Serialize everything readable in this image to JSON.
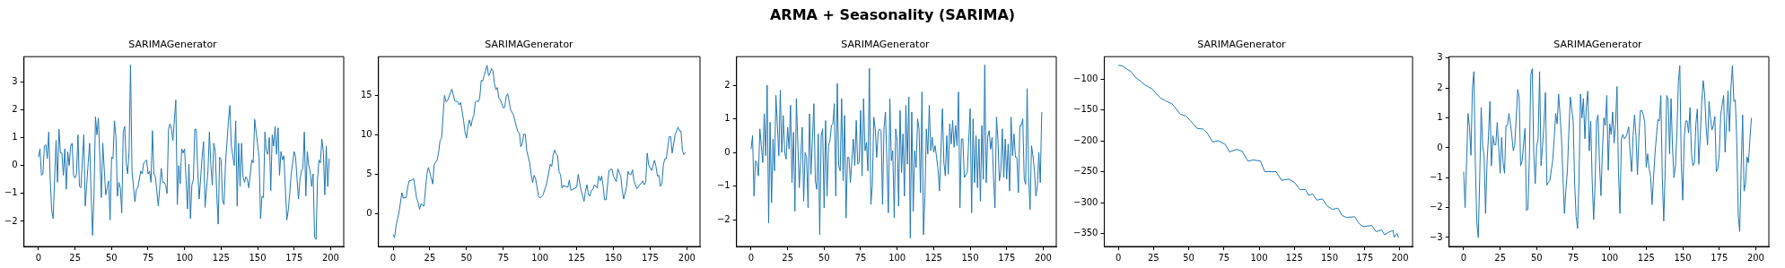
{
  "chart_data": [
    {
      "type": "line",
      "title": "SARIMAGenerator",
      "annotations": [
        "ARMA + Seasonality (SARIMA)"
      ],
      "xlim": [
        -9.95,
        208.95
      ],
      "xticks": [
        0,
        25,
        50,
        75,
        100,
        125,
        150,
        175,
        200
      ],
      "ylim": [
        -2.9,
        3.9
      ],
      "yticks": [
        -2,
        -1,
        0,
        1,
        2,
        3
      ],
      "x": [
        0,
        1,
        2,
        3,
        4,
        5,
        6,
        7,
        8,
        9,
        10,
        12,
        13,
        14,
        15,
        16,
        17,
        18,
        19,
        20,
        21,
        22,
        23,
        24,
        25,
        26,
        27,
        28,
        29,
        31,
        32,
        34,
        35,
        36,
        37,
        38,
        39,
        40,
        41,
        43,
        44,
        46,
        47,
        48,
        49,
        50,
        51,
        52,
        53,
        54,
        55,
        56,
        57,
        58,
        59,
        60,
        61,
        62,
        63,
        64,
        66,
        67,
        68,
        70,
        71,
        72,
        74,
        75,
        76,
        77,
        78,
        79,
        80,
        82,
        84,
        85,
        86,
        87,
        88,
        89,
        90,
        91,
        92,
        94,
        95,
        96,
        97,
        98,
        99,
        100,
        101,
        102,
        103,
        104,
        105,
        106,
        107,
        108,
        109,
        110,
        112,
        113,
        114,
        116,
        117,
        118,
        119,
        120,
        121,
        122,
        123,
        124,
        125,
        126,
        127,
        128,
        130,
        131,
        132,
        134,
        135,
        136,
        137,
        138,
        139,
        140,
        141,
        142,
        143,
        144,
        146,
        147,
        148,
        149,
        151,
        152,
        153,
        154,
        155,
        156,
        157,
        158,
        159,
        160,
        161,
        162,
        163,
        164,
        165,
        166,
        167,
        168,
        170,
        171,
        172,
        173,
        175,
        176,
        177,
        178,
        179,
        180,
        181,
        182,
        183,
        184,
        185,
        186,
        187,
        188,
        189,
        190,
        191,
        192,
        193,
        194,
        195,
        196,
        197,
        198,
        199
      ],
      "series": [
        {
          "color": "#1f77b4",
          "values": [
            0.3,
            0.6,
            -0.35,
            -0.3,
            0.7,
            0.75,
            0.25,
            1.2,
            -0.5,
            -1.6,
            -1.9,
            0.9,
            -0.6,
            1.3,
            0.45,
            0.45,
            -0.35,
            0.6,
            -0.85,
            0.5,
            0.0,
            0.7,
            0.8,
            -0.35,
            -0.45,
            -0.3,
            1.1,
            -0.75,
            -0.8,
            1.1,
            -1.45,
            0.1,
            0.8,
            -1.0,
            -2.5,
            -1.0,
            1.75,
            1.1,
            1.7,
            -1.15,
            0.8,
            -1.05,
            -0.8,
            -0.55,
            -1.95,
            0.3,
            0.25,
            1.6,
            1.0,
            -1.1,
            -0.6,
            -0.8,
            -1.7,
            1.2,
            1.4,
            0.1,
            -0.3,
            0.5,
            3.6,
            -0.2,
            -1.3,
            -0.85,
            -0.8,
            -0.2,
            -0.3,
            0.1,
            0.2,
            -0.3,
            -0.2,
            -0.6,
            1.25,
            -0.3,
            -0.4,
            -1.45,
            -0.1,
            -0.6,
            -0.6,
            -0.7,
            -1.0,
            1.3,
            1.5,
            1.3,
            0.9,
            2.35,
            -1.4,
            0.0,
            -0.65,
            0.6,
            0.45,
            0.6,
            -0.5,
            -1.55,
            0.05,
            -1.9,
            -0.7,
            -0.5,
            1.3,
            1.3,
            -0.2,
            -1.2,
            0.3,
            0.85,
            -1.5,
            -0.2,
            1.2,
            0.0,
            -0.7,
            0.8,
            0.5,
            -1.0,
            -2.1,
            0.3,
            0.2,
            -1.25,
            -1.4,
            0.05,
            1.6,
            2.15,
            0.7,
            0.0,
            1.6,
            -1.45,
            0.8,
            -0.75,
            0.8,
            -0.4,
            -0.6,
            -0.4,
            -0.5,
            -0.8,
            0.2,
            0.1,
            1.65,
            1.2,
            0.3,
            -1.9,
            -1.1,
            -1.15,
            1.2,
            0.5,
            0.4,
            1.0,
            -0.9,
            1.1,
            0.7,
            1.4,
            0.4,
            1.35,
            -0.35,
            0.5,
            0.2,
            0.35,
            -1.95,
            -1.6,
            -1.0,
            -0.3,
            0.5,
            0.3,
            -0.5,
            -1.2,
            -0.5,
            -0.2,
            -0.1,
            1.2,
            -1.1,
            0.5,
            0.0,
            -0.2,
            -0.75,
            -0.3,
            -2.55,
            -2.65,
            -0.5,
            0.2,
            0.1,
            0.95,
            0.5,
            -1.05,
            0.7,
            -0.75,
            0.25
          ]
        }
      ]
    },
    {
      "type": "line",
      "title": "SARIMAGenerator",
      "xlim": [
        -9.95,
        208.95
      ],
      "xticks": [
        0,
        25,
        50,
        75,
        100,
        125,
        150,
        175,
        200
      ],
      "ylim": [
        -4.1,
        19.9
      ],
      "yticks": [
        0,
        5,
        10,
        15
      ],
      "x": [
        0,
        1,
        2,
        4,
        6,
        7,
        9,
        10,
        11,
        13,
        14,
        16,
        17,
        18,
        19,
        21,
        23,
        24,
        25,
        27,
        28,
        30,
        31,
        32,
        33,
        35,
        36,
        37,
        39,
        40,
        42,
        44,
        45,
        46,
        47,
        48,
        49,
        50,
        51,
        52,
        53,
        54,
        55,
        56,
        57,
        58,
        59,
        60,
        61,
        62,
        64,
        65,
        66,
        67,
        68,
        69,
        70,
        71,
        72,
        73,
        75,
        76,
        77,
        78,
        80,
        82,
        84,
        85,
        86,
        87,
        88,
        89,
        90,
        91,
        93,
        94,
        95,
        96,
        97,
        99,
        100,
        102,
        104,
        105,
        107,
        108,
        109,
        110,
        111,
        112,
        113,
        114,
        115,
        116,
        119,
        120,
        121,
        123,
        125,
        126,
        128,
        130,
        131,
        132,
        133,
        134,
        135,
        136,
        137,
        139,
        140,
        141,
        142,
        143,
        144,
        145,
        147,
        149,
        150,
        152,
        153,
        155,
        156,
        157,
        159,
        160,
        161,
        162,
        163,
        164,
        166,
        168,
        170,
        171,
        172,
        173,
        174,
        176,
        178,
        179,
        180,
        181,
        182,
        183,
        184,
        185,
        186,
        188,
        189,
        190,
        192,
        194,
        195,
        196,
        197,
        198,
        199
      ],
      "series": [
        {
          "color": "#1f77b4",
          "values": [
            -2.6,
            -3.0,
            -1.5,
            0.2,
            2.7,
            2.0,
            2.1,
            3.5,
            4.2,
            4.3,
            4.5,
            2.0,
            1.5,
            0.6,
            1.3,
            1.0,
            5.0,
            5.9,
            5.3,
            3.8,
            6.3,
            6.8,
            7.8,
            9.3,
            9.6,
            15.0,
            14.2,
            14.3,
            15.3,
            15.8,
            14.3,
            14.2,
            13.8,
            14.1,
            13.0,
            11.8,
            10.3,
            9.6,
            11.2,
            11.9,
            11.1,
            12.0,
            12.5,
            14.2,
            14.3,
            14.2,
            14.7,
            16.9,
            16.8,
            17.5,
            18.8,
            17.5,
            17.8,
            18.4,
            18.1,
            16.5,
            15.7,
            16.0,
            14.6,
            14.5,
            13.4,
            13.5,
            14.9,
            15.2,
            13.2,
            12.5,
            11.0,
            10.4,
            10.2,
            8.5,
            9.0,
            10.1,
            10.1,
            8.0,
            6.5,
            5.0,
            4.0,
            4.9,
            4.5,
            2.3,
            2.0,
            2.4,
            3.5,
            4.3,
            6.3,
            6.0,
            7.5,
            8.1,
            7.6,
            7.4,
            5.3,
            5.0,
            3.3,
            3.6,
            3.4,
            4.3,
            3.0,
            3.2,
            3.4,
            5.0,
            3.0,
            1.6,
            2.9,
            3.7,
            2.4,
            2.3,
            3.0,
            3.1,
            3.7,
            3.3,
            4.8,
            4.2,
            4.8,
            3.5,
            1.8,
            1.8,
            5.5,
            5.7,
            4.8,
            4.1,
            5.7,
            4.8,
            3.0,
            1.9,
            3.5,
            5.4,
            5.0,
            5.0,
            5.6,
            4.2,
            3.2,
            3.7,
            4.2,
            3.7,
            4.0,
            7.7,
            6.2,
            5.5,
            6.8,
            6.0,
            4.8,
            4.9,
            3.5,
            3.8,
            6.2,
            7.0,
            7.0,
            9.8,
            9.8,
            7.7,
            10.0,
            11.0,
            10.5,
            10.5,
            8.0,
            7.5,
            7.8
          ]
        }
      ]
    },
    {
      "type": "line",
      "title": "SARIMAGenerator",
      "xlim": [
        -9.95,
        208.95
      ],
      "xticks": [
        0,
        25,
        50,
        75,
        100,
        125,
        150,
        175,
        200
      ],
      "ylim": [
        -2.8,
        2.85
      ],
      "yticks": [
        -2,
        -1,
        0,
        1,
        2
      ],
      "x": [
        0,
        1,
        2,
        3,
        4,
        5,
        6,
        7,
        8,
        9,
        10,
        11,
        12,
        13,
        14,
        15,
        16,
        17,
        19,
        20,
        21,
        22,
        23,
        24,
        25,
        26,
        27,
        28,
        29,
        30,
        31,
        33,
        35,
        36,
        37,
        38,
        39,
        40,
        41,
        43,
        44,
        45,
        46,
        47,
        48,
        49,
        50,
        51,
        52,
        53,
        54,
        55,
        56,
        57,
        58,
        59,
        60,
        61,
        62,
        63,
        64,
        65,
        66,
        67,
        68,
        70,
        71,
        72,
        73,
        74,
        75,
        76,
        77,
        78,
        79,
        80,
        81,
        82,
        83,
        84,
        85,
        86,
        87,
        88,
        89,
        90,
        91,
        92,
        94,
        95,
        96,
        97,
        98,
        99,
        100,
        101,
        102,
        103,
        104,
        105,
        106,
        107,
        108,
        109,
        110,
        111,
        112,
        113,
        114,
        115,
        116,
        117,
        118,
        119,
        120,
        121,
        122,
        123,
        124,
        125,
        126,
        128,
        129,
        131,
        132,
        133,
        134,
        135,
        136,
        137,
        138,
        139,
        140,
        141,
        142,
        143,
        144,
        145,
        146,
        148,
        150,
        151,
        152,
        153,
        154,
        155,
        156,
        157,
        158,
        159,
        160,
        161,
        162,
        163,
        164,
        165,
        166,
        167,
        168,
        169,
        170,
        171,
        172,
        173,
        174,
        175,
        176,
        177,
        178,
        179,
        180,
        181,
        182,
        183,
        184,
        185,
        186,
        187,
        188,
        189,
        190,
        191,
        192,
        193,
        194,
        195,
        196,
        197,
        198,
        199
      ],
      "series": [
        {
          "color": "#1f77b4",
          "values": [
            0.1,
            0.5,
            -1.3,
            -0.25,
            -0.3,
            -0.7,
            0.7,
            0.2,
            -0.3,
            1.15,
            -0.1,
            2.0,
            -2.1,
            0.9,
            -1.5,
            0.4,
            -0.55,
            1.7,
            -0.1,
            1.85,
            0.0,
            1.1,
            0.0,
            -0.2,
            0.75,
            0.1,
            1.4,
            -0.9,
            0.6,
            -1.75,
            1.6,
            -1.05,
            0.75,
            -1.45,
            0.0,
            -0.15,
            -1.65,
            1.15,
            -0.65,
            1.45,
            -0.85,
            -1.1,
            0.55,
            -2.45,
            0.5,
            0.7,
            -1.65,
            0.95,
            -1.3,
            0.2,
            0.35,
            0.8,
            0.85,
            1.45,
            -1.3,
            2.05,
            -0.4,
            -0.55,
            1.6,
            -0.85,
            1.1,
            -1.95,
            -0.15,
            -0.15,
            -0.9,
            0.4,
            -0.4,
            0.95,
            -0.35,
            -0.3,
            1.25,
            -0.7,
            1.6,
            0.05,
            0.3,
            -0.55,
            2.5,
            -1.55,
            -1.0,
            1.05,
            0.7,
            -0.15,
            0.6,
            0.7,
            0.65,
            -1.55,
            0.75,
            1.2,
            -1.8,
            1.6,
            -0.25,
            0.05,
            -1.95,
            0.7,
            0.35,
            -1.6,
            1.25,
            -0.6,
            0.55,
            -1.3,
            1.4,
            -0.35,
            1.65,
            -2.55,
            1.2,
            -1.75,
            0.05,
            -0.45,
            1.0,
            0.7,
            -1.2,
            1.8,
            -2.45,
            -1.35,
            0.7,
            -0.05,
            1.4,
            0.05,
            0.45,
            0.0,
            0.2,
            -0.5,
            -1.15,
            1.3,
            -0.3,
            -0.7,
            0.5,
            -0.65,
            0.85,
            0.25,
            0.95,
            0.15,
            0.8,
            0.2,
            1.8,
            -1.65,
            0.4,
            0.4,
            -0.75,
            -0.6,
            1.3,
            -1.8,
            1.0,
            -0.9,
            0.5,
            -1.05,
            0.4,
            -1.45,
            0.8,
            -0.8,
            2.6,
            -0.9,
            0.45,
            0.65,
            0.1,
            0.45,
            -0.75,
            -1.65,
            1.05,
            0.4,
            -0.85,
            -0.55,
            0.7,
            -0.75,
            0.4,
            -0.8,
            0.25,
            -1.15,
            1.05,
            -0.1,
            0.55,
            -0.15,
            -0.15,
            -1.2,
            0.8,
            0.8,
            1.0,
            -0.8,
            -0.95,
            1.9,
            -0.7,
            -1.7,
            0.2,
            -0.1,
            -0.55,
            -1.3,
            -1.0,
            0.0,
            -0.9,
            1.2
          ]
        }
      ]
    },
    {
      "type": "line",
      "title": "SARIMAGenerator",
      "xlim": [
        -9.95,
        208.95
      ],
      "xticks": [
        0,
        25,
        50,
        75,
        100,
        125,
        150,
        175,
        200
      ],
      "ylim": [
        -371,
        -64
      ],
      "yticks": [
        -350,
        -300,
        -250,
        -200,
        -150,
        -100
      ],
      "x": [
        0,
        3,
        6,
        9,
        12,
        16,
        19,
        24,
        27,
        30,
        34,
        38,
        41,
        44,
        48,
        51,
        56,
        60,
        63,
        67,
        71,
        76,
        79,
        84,
        88,
        92,
        96,
        101,
        104,
        109,
        112,
        116,
        121,
        125,
        129,
        133,
        135,
        138,
        141,
        145,
        148,
        152,
        156,
        159,
        162,
        168,
        171,
        174,
        177,
        180,
        183,
        187,
        189,
        192,
        195,
        196,
        198,
        199
      ],
      "series": [
        {
          "color": "#1f77b4",
          "values": [
            -78,
            -79,
            -84,
            -88,
            -97,
            -104,
            -110,
            -116,
            -124,
            -131,
            -136,
            -140,
            -148,
            -157,
            -160,
            -167,
            -180,
            -181,
            -187,
            -202,
            -200,
            -206,
            -218,
            -214,
            -217,
            -233,
            -231,
            -233,
            -250,
            -250,
            -250,
            -264,
            -262,
            -267,
            -279,
            -279,
            -288,
            -286,
            -296,
            -294,
            -305,
            -311,
            -309,
            -321,
            -324,
            -323,
            -334,
            -339,
            -338,
            -337,
            -347,
            -344,
            -352,
            -348,
            -345,
            -356,
            -350,
            -357
          ]
        }
      ]
    },
    {
      "type": "line",
      "title": "SARIMAGenerator",
      "xlim": [
        -9.95,
        208.95
      ],
      "xticks": [
        0,
        25,
        50,
        75,
        100,
        125,
        150,
        175,
        200
      ],
      "ylim": [
        -3.3,
        3.05
      ],
      "yticks": [
        -3,
        -2,
        -1,
        0,
        1,
        2,
        3
      ],
      "x": [
        0,
        1,
        2,
        3,
        4,
        5,
        6,
        7,
        8,
        9,
        10,
        11,
        12,
        13,
        14,
        15,
        16,
        17,
        18,
        19,
        20,
        21,
        22,
        23,
        24,
        25,
        26,
        27,
        28,
        29,
        30,
        31,
        32,
        33,
        34,
        35,
        37,
        38,
        39,
        40,
        42,
        43,
        44,
        45,
        46,
        47,
        48,
        49,
        50,
        51,
        52,
        53,
        54,
        55,
        56,
        57,
        58,
        59,
        61,
        62,
        63,
        64,
        65,
        66,
        67,
        68,
        69,
        70,
        71,
        72,
        73,
        74,
        75,
        76,
        77,
        78,
        79,
        80,
        81,
        82,
        83,
        84,
        85,
        86,
        87,
        88,
        89,
        90,
        91,
        92,
        93,
        94,
        95,
        96,
        97,
        98,
        99,
        100,
        101,
        102,
        103,
        104,
        105,
        106,
        107,
        108,
        109,
        110,
        111,
        112,
        113,
        114,
        115,
        116,
        117,
        118,
        119,
        120,
        121,
        122,
        123,
        124,
        125,
        126,
        127,
        128,
        129,
        130,
        131,
        132,
        133,
        134,
        135,
        136,
        137,
        138,
        139,
        140,
        141,
        142,
        143,
        144,
        145,
        146,
        147,
        148,
        149,
        150,
        151,
        152,
        153,
        154,
        155,
        156,
        157,
        158,
        159,
        160,
        161,
        162,
        163,
        164,
        165,
        166,
        167,
        168,
        169,
        170,
        171,
        172,
        173,
        174,
        175,
        176,
        177,
        178,
        179,
        180,
        181,
        182,
        183,
        184,
        185,
        186,
        187,
        188,
        189,
        190,
        191,
        192,
        193,
        194,
        195,
        196,
        197
      ],
      "series": [
        {
          "color": "#1f77b4",
          "values": [
            -0.8,
            -2.0,
            -0.5,
            1.15,
            0.7,
            -0.25,
            2.0,
            2.55,
            -0.5,
            -2.5,
            -3.0,
            -1.0,
            1.35,
            0.1,
            -0.3,
            -2.2,
            -0.5,
            0.4,
            1.55,
            -0.6,
            0.4,
            0.1,
            0.1,
            0.85,
            0.0,
            -0.85,
            0.35,
            -0.5,
            -0.85,
            0.75,
            0.75,
            1.15,
            0.8,
            0.4,
            -0.1,
            0.1,
            1.95,
            1.7,
            -0.6,
            -0.45,
            0.65,
            -2.1,
            -2.05,
            -0.3,
            2.45,
            2.65,
            -0.2,
            -1.2,
            0.05,
            0.3,
            2.55,
            -0.6,
            0.05,
            0.8,
            1.85,
            -1.25,
            -1.15,
            -1.1,
            -0.4,
            0.3,
            1.15,
            0.8,
            1.8,
            1.1,
            0.3,
            -1.0,
            -2.2,
            -1.4,
            -0.8,
            0.5,
            1.7,
            1.3,
            0.9,
            -1.2,
            -2.3,
            -2.7,
            -1.0,
            1.8,
            1.0,
            1.65,
            0.3,
            1.4,
            1.9,
            -0.1,
            0.9,
            -1.1,
            -2.4,
            -1.2,
            0.9,
            1.1,
            -0.5,
            -1.6,
            -0.1,
            1.0,
            0.75,
            1.75,
            -0.75,
            0.8,
            0.45,
            1.2,
            0.15,
            0.8,
            2.05,
            -0.8,
            -2.2,
            0.3,
            0.45,
            0.3,
            0.35,
            0.5,
            0.7,
            -0.2,
            -0.8,
            0.4,
            1.1,
            0.4,
            -0.9,
            0.35,
            1.25,
            1.25,
            1.1,
            0.85,
            -0.65,
            -0.2,
            -0.7,
            -0.95,
            -1.9,
            -1.0,
            -0.2,
            0.4,
            0.95,
            0.9,
            1.75,
            -1.0,
            -2.45,
            -0.7,
            1.75,
            1.6,
            -0.2,
            1.65,
            0.0,
            -1.0,
            -0.6,
            0.5,
            2.2,
            2.75,
            -0.5,
            -1.75,
            0.3,
            0.9,
            0.9,
            0.5,
            1.35,
            -0.2,
            -0.6,
            -0.5,
            0.8,
            1.3,
            -0.55,
            0.4,
            1.5,
            2.25,
            1.8,
            0.7,
            0.1,
            1.55,
            1.0,
            0.6,
            0.75,
            1.05,
            -0.8,
            -0.7,
            -0.2,
            1.1,
            1.45,
            1.75,
            -0.15,
            0.9,
            1.9,
            0.55,
            2.0,
            2.75,
            1.55,
            1.6,
            0.2,
            -2.25,
            -2.8,
            -0.7,
            1.1,
            -1.45,
            -1.2,
            -0.3,
            -0.5,
            0.3,
            1.0
          ]
        }
      ]
    }
  ]
}
